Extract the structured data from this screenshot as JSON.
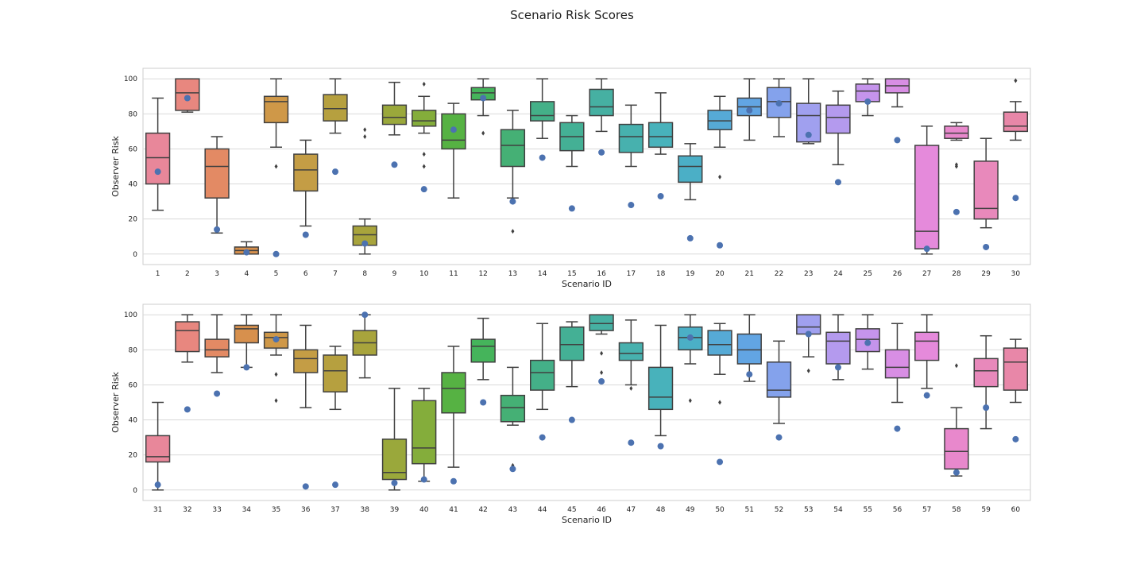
{
  "figure_title": "Scenario Risk Scores",
  "chart_data": [
    {
      "type": "box",
      "title": "",
      "xlabel": "Scenario ID",
      "ylabel": "Observer Risk",
      "ylim": [
        -6,
        106
      ],
      "yticks": [
        0,
        20,
        40,
        60,
        80,
        100
      ],
      "grid": true,
      "categories": [
        "1",
        "2",
        "3",
        "4",
        "5",
        "6",
        "7",
        "8",
        "9",
        "10",
        "11",
        "12",
        "13",
        "14",
        "15",
        "16",
        "17",
        "18",
        "19",
        "20",
        "21",
        "22",
        "23",
        "24",
        "25",
        "26",
        "27",
        "28",
        "29",
        "30"
      ],
      "boxes": [
        {
          "whislo": 25,
          "q1": 40,
          "med": 55,
          "q3": 69,
          "whishi": 89,
          "fliers": [],
          "dot": 47,
          "color": "#e8879a"
        },
        {
          "whislo": 81,
          "q1": 82,
          "med": 92,
          "q3": 100,
          "whishi": 100,
          "fliers": [],
          "dot": 89,
          "color": "#e8877f"
        },
        {
          "whislo": 12,
          "q1": 32,
          "med": 50,
          "q3": 60,
          "whishi": 67,
          "fliers": [],
          "dot": 14,
          "color": "#e38a64"
        },
        {
          "whislo": 0,
          "q1": 0,
          "med": 2,
          "q3": 4,
          "whishi": 7,
          "fliers": [],
          "dot": 1,
          "color": "#d7904d"
        },
        {
          "whislo": 61,
          "q1": 75,
          "med": 87,
          "q3": 90,
          "whishi": 100,
          "fliers": [
            50
          ],
          "dot": 0,
          "color": "#cf9848"
        },
        {
          "whislo": 16,
          "q1": 36,
          "med": 48,
          "q3": 57,
          "whishi": 65,
          "fliers": [],
          "dot": 11,
          "color": "#c49d45"
        },
        {
          "whislo": 69,
          "q1": 76,
          "med": 83,
          "q3": 91,
          "whishi": 100,
          "fliers": [],
          "dot": 47,
          "color": "#b6a03f"
        },
        {
          "whislo": 0,
          "q1": 5,
          "med": 11,
          "q3": 16,
          "whishi": 20,
          "fliers": [
            67,
            71
          ],
          "dot": 6,
          "color": "#a8a43c"
        },
        {
          "whislo": 68,
          "q1": 74,
          "med": 78,
          "q3": 85,
          "whishi": 98,
          "fliers": [],
          "dot": 51,
          "color": "#9aa83b"
        },
        {
          "whislo": 69,
          "q1": 73,
          "med": 76,
          "q3": 82,
          "whishi": 90,
          "fliers": [
            50,
            57,
            97
          ],
          "dot": 37,
          "color": "#84ad3b"
        },
        {
          "whislo": 32,
          "q1": 60,
          "med": 65,
          "q3": 80,
          "whishi": 86,
          "fliers": [],
          "dot": 71,
          "color": "#56b243"
        },
        {
          "whislo": 79,
          "q1": 88,
          "med": 92,
          "q3": 95,
          "whishi": 100,
          "fliers": [
            69
          ],
          "dot": 89,
          "color": "#45b45b"
        },
        {
          "whislo": 32,
          "q1": 50,
          "med": 62,
          "q3": 71,
          "whishi": 82,
          "fliers": [
            13
          ],
          "dot": 30,
          "color": "#45b075"
        },
        {
          "whislo": 66,
          "q1": 76,
          "med": 79,
          "q3": 87,
          "whishi": 100,
          "fliers": [],
          "dot": 55,
          "color": "#44b088"
        },
        {
          "whislo": 50,
          "q1": 59,
          "med": 67,
          "q3": 75,
          "whishi": 79,
          "fliers": [],
          "dot": 26,
          "color": "#44b095"
        },
        {
          "whislo": 70,
          "q1": 79,
          "med": 84,
          "q3": 94,
          "whishi": 100,
          "fliers": [],
          "dot": 58,
          "color": "#46b0a2"
        },
        {
          "whislo": 50,
          "q1": 58,
          "med": 67,
          "q3": 74,
          "whishi": 85,
          "fliers": [],
          "dot": 28,
          "color": "#47b1ae"
        },
        {
          "whislo": 57,
          "q1": 61,
          "med": 67,
          "q3": 75,
          "whishi": 92,
          "fliers": [],
          "dot": 33,
          "color": "#48b2bb"
        },
        {
          "whislo": 31,
          "q1": 41,
          "med": 50,
          "q3": 56,
          "whishi": 63,
          "fliers": [],
          "dot": 9,
          "color": "#4bafc6"
        },
        {
          "whislo": 61,
          "q1": 71,
          "med": 76,
          "q3": 82,
          "whishi": 90,
          "fliers": [
            44
          ],
          "dot": 5,
          "color": "#56aad6"
        },
        {
          "whislo": 65,
          "q1": 79,
          "med": 84,
          "q3": 89,
          "whishi": 100,
          "fliers": [],
          "dot": 82,
          "color": "#62a5e3"
        },
        {
          "whislo": 67,
          "q1": 78,
          "med": 87,
          "q3": 95,
          "whishi": 100,
          "fliers": [],
          "dot": 86,
          "color": "#84a2ec"
        },
        {
          "whislo": 63,
          "q1": 64,
          "med": 79,
          "q3": 86,
          "whishi": 100,
          "fliers": [],
          "dot": 68,
          "color": "#a0a0ef"
        },
        {
          "whislo": 51,
          "q1": 69,
          "med": 78,
          "q3": 85,
          "whishi": 93,
          "fliers": [],
          "dot": 41,
          "color": "#b49aee"
        },
        {
          "whislo": 79,
          "q1": 87,
          "med": 93,
          "q3": 97,
          "whishi": 100,
          "fliers": [],
          "dot": 87,
          "color": "#c594ec"
        },
        {
          "whislo": 84,
          "q1": 92,
          "med": 96,
          "q3": 100,
          "whishi": 100,
          "fliers": [],
          "dot": 65,
          "color": "#d88ee4"
        },
        {
          "whislo": 0,
          "q1": 3,
          "med": 13,
          "q3": 62,
          "whishi": 73,
          "fliers": [],
          "dot": 3,
          "color": "#e58adb"
        },
        {
          "whislo": 65,
          "q1": 66,
          "med": 69,
          "q3": 73,
          "whishi": 75,
          "fliers": [
            50,
            51
          ],
          "dot": 24,
          "color": "#e888cc"
        },
        {
          "whislo": 15,
          "q1": 20,
          "med": 26,
          "q3": 53,
          "whishi": 66,
          "fliers": [],
          "dot": 4,
          "color": "#e889bb"
        },
        {
          "whislo": 65,
          "q1": 70,
          "med": 73,
          "q3": 81,
          "whishi": 87,
          "fliers": [
            99
          ],
          "dot": 32,
          "color": "#e887a8"
        }
      ]
    },
    {
      "type": "box",
      "title": "",
      "xlabel": "Scenario ID",
      "ylabel": "Observer Risk",
      "ylim": [
        -6,
        106
      ],
      "yticks": [
        0,
        20,
        40,
        60,
        80,
        100
      ],
      "grid": true,
      "categories": [
        "31",
        "32",
        "33",
        "34",
        "35",
        "36",
        "37",
        "38",
        "39",
        "40",
        "41",
        "42",
        "43",
        "44",
        "45",
        "46",
        "47",
        "48",
        "49",
        "50",
        "51",
        "52",
        "53",
        "54",
        "55",
        "56",
        "57",
        "58",
        "59",
        "60"
      ],
      "boxes": [
        {
          "whislo": 0,
          "q1": 16,
          "med": 19,
          "q3": 31,
          "whishi": 50,
          "fliers": [],
          "dot": 3,
          "color": "#e8879a"
        },
        {
          "whislo": 73,
          "q1": 79,
          "med": 91,
          "q3": 96,
          "whishi": 100,
          "fliers": [],
          "dot": 46,
          "color": "#e8877f"
        },
        {
          "whislo": 67,
          "q1": 76,
          "med": 80,
          "q3": 86,
          "whishi": 100,
          "fliers": [],
          "dot": 55,
          "color": "#e38a64"
        },
        {
          "whislo": 70,
          "q1": 84,
          "med": 92,
          "q3": 94,
          "whishi": 100,
          "fliers": [],
          "dot": 70,
          "color": "#d7904d"
        },
        {
          "whislo": 77,
          "q1": 81,
          "med": 87,
          "q3": 90,
          "whishi": 100,
          "fliers": [
            51,
            66
          ],
          "dot": 86,
          "color": "#cf9848"
        },
        {
          "whislo": 47,
          "q1": 67,
          "med": 75,
          "q3": 80,
          "whishi": 94,
          "fliers": [],
          "dot": 2,
          "color": "#c49d45"
        },
        {
          "whislo": 46,
          "q1": 56,
          "med": 68,
          "q3": 77,
          "whishi": 82,
          "fliers": [],
          "dot": 3,
          "color": "#b6a03f"
        },
        {
          "whislo": 64,
          "q1": 77,
          "med": 84,
          "q3": 91,
          "whishi": 100,
          "fliers": [],
          "dot": 100,
          "color": "#a8a43c"
        },
        {
          "whislo": 0,
          "q1": 6,
          "med": 10,
          "q3": 29,
          "whishi": 58,
          "fliers": [],
          "dot": 4,
          "color": "#9aa83b"
        },
        {
          "whislo": 5,
          "q1": 15,
          "med": 24,
          "q3": 51,
          "whishi": 58,
          "fliers": [],
          "dot": 6,
          "color": "#84ad3b"
        },
        {
          "whislo": 13,
          "q1": 44,
          "med": 58,
          "q3": 67,
          "whishi": 82,
          "fliers": [],
          "dot": 5,
          "color": "#56b243"
        },
        {
          "whislo": 63,
          "q1": 73,
          "med": 82,
          "q3": 86,
          "whishi": 98,
          "fliers": [],
          "dot": 50,
          "color": "#45b45b"
        },
        {
          "whislo": 37,
          "q1": 39,
          "med": 47,
          "q3": 54,
          "whishi": 70,
          "fliers": [
            14
          ],
          "dot": 12,
          "color": "#45b075"
        },
        {
          "whislo": 46,
          "q1": 57,
          "med": 67,
          "q3": 74,
          "whishi": 95,
          "fliers": [],
          "dot": 30,
          "color": "#44b088"
        },
        {
          "whislo": 59,
          "q1": 74,
          "med": 83,
          "q3": 93,
          "whishi": 96,
          "fliers": [],
          "dot": 40,
          "color": "#44b095"
        },
        {
          "whislo": 89,
          "q1": 91,
          "med": 95,
          "q3": 100,
          "whishi": 100,
          "fliers": [
            67,
            78
          ],
          "dot": 62,
          "color": "#46b0a2"
        },
        {
          "whislo": 60,
          "q1": 74,
          "med": 78,
          "q3": 84,
          "whishi": 97,
          "fliers": [
            58
          ],
          "dot": 27,
          "color": "#47b1ae"
        },
        {
          "whislo": 31,
          "q1": 46,
          "med": 53,
          "q3": 70,
          "whishi": 94,
          "fliers": [],
          "dot": 25,
          "color": "#48b2bb"
        },
        {
          "whislo": 72,
          "q1": 80,
          "med": 87,
          "q3": 93,
          "whishi": 100,
          "fliers": [
            51
          ],
          "dot": 87,
          "color": "#4bafc6"
        },
        {
          "whislo": 66,
          "q1": 77,
          "med": 83,
          "q3": 91,
          "whishi": 95,
          "fliers": [
            50
          ],
          "dot": 16,
          "color": "#56aad6"
        },
        {
          "whislo": 62,
          "q1": 72,
          "med": 80,
          "q3": 89,
          "whishi": 100,
          "fliers": [],
          "dot": 66,
          "color": "#62a5e3"
        },
        {
          "whislo": 38,
          "q1": 53,
          "med": 57,
          "q3": 73,
          "whishi": 85,
          "fliers": [],
          "dot": 30,
          "color": "#84a2ec"
        },
        {
          "whislo": 76,
          "q1": 89,
          "med": 93,
          "q3": 100,
          "whishi": 100,
          "fliers": [
            68
          ],
          "dot": 89,
          "color": "#a0a0ef"
        },
        {
          "whislo": 63,
          "q1": 72,
          "med": 85,
          "q3": 90,
          "whishi": 100,
          "fliers": [],
          "dot": 70,
          "color": "#b49aee"
        },
        {
          "whislo": 69,
          "q1": 79,
          "med": 86,
          "q3": 92,
          "whishi": 100,
          "fliers": [],
          "dot": 84,
          "color": "#c594ec"
        },
        {
          "whislo": 50,
          "q1": 64,
          "med": 70,
          "q3": 80,
          "whishi": 95,
          "fliers": [],
          "dot": 35,
          "color": "#d88ee4"
        },
        {
          "whislo": 58,
          "q1": 74,
          "med": 85,
          "q3": 90,
          "whishi": 100,
          "fliers": [],
          "dot": 54,
          "color": "#e58adb"
        },
        {
          "whislo": 8,
          "q1": 12,
          "med": 22,
          "q3": 35,
          "whishi": 47,
          "fliers": [
            71
          ],
          "dot": 10,
          "color": "#e888cc"
        },
        {
          "whislo": 35,
          "q1": 59,
          "med": 68,
          "q3": 75,
          "whishi": 88,
          "fliers": [],
          "dot": 47,
          "color": "#e889bb"
        },
        {
          "whislo": 50,
          "q1": 57,
          "med": 73,
          "q3": 81,
          "whishi": 86,
          "fliers": [],
          "dot": 29,
          "color": "#e887a8"
        }
      ]
    }
  ]
}
